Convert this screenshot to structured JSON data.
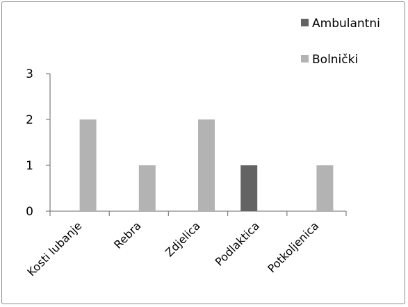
{
  "chart_data": {
    "type": "bar",
    "title": "",
    "xlabel": "",
    "ylabel": "",
    "categories": [
      "Kosti lubanje",
      "Rebra",
      "Zdjelica",
      "Podlaktica",
      "Potkoljenica"
    ],
    "series": [
      {
        "name": "Ambulantni",
        "color": "#636363",
        "values": [
          0,
          0,
          0,
          1,
          0
        ]
      },
      {
        "name": "Bolnički",
        "color": "#b3b3b3",
        "values": [
          2,
          1,
          2,
          0,
          1
        ]
      }
    ],
    "ylim": [
      0,
      3
    ],
    "yticks": [
      0,
      1,
      2,
      3
    ],
    "grid": false,
    "legend_position": "top-right"
  }
}
